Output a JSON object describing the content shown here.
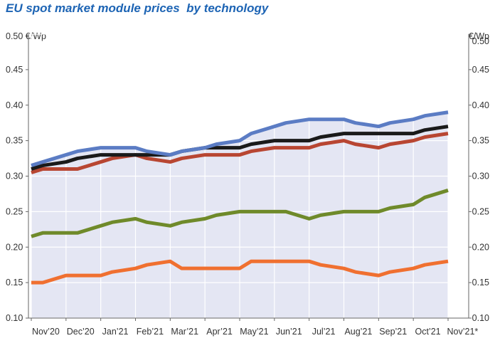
{
  "title": "EU spot market module prices  by technology",
  "unit_left": "0.50 €/Wp",
  "unit_right": "€/Wp",
  "colors": {
    "background_fill": "#e4e6f3",
    "grid": "#ffffff",
    "axis": "#666666"
  },
  "chart_data": {
    "type": "line",
    "categories": [
      "Nov’20",
      "Dec’20",
      "Jan’21",
      "Feb’21",
      "Mar’21",
      "Apr’21",
      "May’21",
      "Jun’21",
      "Jul’21",
      "Aug’21",
      "Sep’21",
      "Oct’21",
      "Nov’21*"
    ],
    "x": [
      0,
      0.33,
      1,
      1.33,
      2,
      2.33,
      3,
      3.33,
      4,
      4.33,
      5,
      5.33,
      6,
      6.33,
      7,
      7.33,
      8,
      8.33,
      9,
      9.33,
      10,
      10.33,
      11,
      11.33,
      12
    ],
    "yticks_left": [
      "0.10",
      "0.15",
      "0.20",
      "0.25",
      "0.30",
      "0.35",
      "0.40",
      "0.45"
    ],
    "yticks_right": [
      "0.10",
      "0.15",
      "0.20",
      "0.25",
      "0.30",
      "0.35",
      "0.40",
      "0.45",
      "0.50"
    ],
    "ylim": [
      0.1,
      0.5
    ],
    "grid": true,
    "series": [
      {
        "color": "#f07030",
        "values": [
          0.15,
          0.15,
          0.16,
          0.16,
          0.16,
          0.165,
          0.17,
          0.175,
          0.18,
          0.17,
          0.17,
          0.17,
          0.17,
          0.18,
          0.18,
          0.18,
          0.18,
          0.175,
          0.17,
          0.165,
          0.16,
          0.165,
          0.17,
          0.175,
          0.18
        ]
      },
      {
        "color": "#6f8a2a",
        "values": [
          0.215,
          0.22,
          0.22,
          0.22,
          0.23,
          0.235,
          0.24,
          0.235,
          0.23,
          0.235,
          0.24,
          0.245,
          0.25,
          0.25,
          0.25,
          0.25,
          0.24,
          0.245,
          0.25,
          0.25,
          0.25,
          0.255,
          0.26,
          0.27,
          0.28
        ]
      },
      {
        "color": "#b84632",
        "values": [
          0.305,
          0.31,
          0.31,
          0.31,
          0.32,
          0.325,
          0.33,
          0.325,
          0.32,
          0.325,
          0.33,
          0.33,
          0.33,
          0.335,
          0.34,
          0.34,
          0.34,
          0.345,
          0.35,
          0.345,
          0.34,
          0.345,
          0.35,
          0.355,
          0.36
        ]
      },
      {
        "color": "#1a1a1a",
        "values": [
          0.31,
          0.315,
          0.32,
          0.325,
          0.33,
          0.33,
          0.33,
          0.33,
          0.33,
          0.335,
          0.34,
          0.34,
          0.34,
          0.345,
          0.35,
          0.35,
          0.35,
          0.355,
          0.36,
          0.36,
          0.36,
          0.36,
          0.36,
          0.365,
          0.37
        ]
      },
      {
        "color": "#5b7cc4",
        "values": [
          0.315,
          0.32,
          0.33,
          0.335,
          0.34,
          0.34,
          0.34,
          0.335,
          0.33,
          0.335,
          0.34,
          0.345,
          0.35,
          0.36,
          0.37,
          0.375,
          0.38,
          0.38,
          0.38,
          0.375,
          0.37,
          0.375,
          0.38,
          0.385,
          0.39
        ]
      }
    ]
  }
}
